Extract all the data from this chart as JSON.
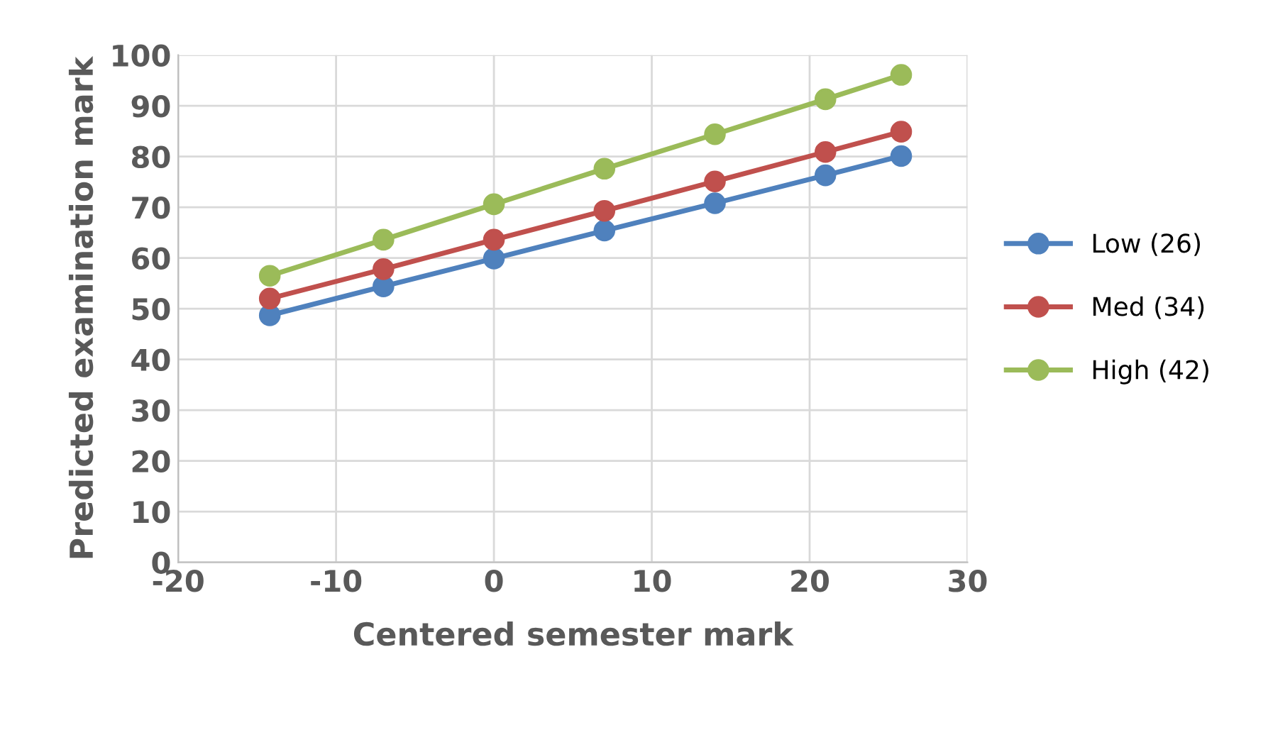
{
  "chart_data": {
    "type": "line",
    "xlabel": "Centered semester mark",
    "ylabel": "Predicted examination mark",
    "x": [
      -14.2,
      -7,
      0,
      7,
      14,
      21,
      25.8
    ],
    "series": [
      {
        "name": "Low (26)",
        "color": "#4f81bd",
        "values": [
          48.7,
          54.4,
          59.9,
          65.4,
          70.8,
          76.3,
          80.1
        ]
      },
      {
        "name": "Med (34)",
        "color": "#c0504d",
        "values": [
          52.0,
          57.8,
          63.6,
          69.3,
          75.1,
          80.9,
          84.9
        ]
      },
      {
        "name": "High (42)",
        "color": "#9bbb59",
        "values": [
          56.5,
          63.6,
          70.6,
          77.6,
          84.4,
          91.3,
          96.1
        ]
      }
    ],
    "xlim": [
      -20,
      30
    ],
    "xticks": [
      -20,
      -10,
      0,
      10,
      20,
      30
    ],
    "ylim": [
      0,
      100
    ],
    "yticks": [
      0,
      10,
      20,
      30,
      40,
      50,
      60,
      70,
      80,
      90,
      100
    ],
    "grid": true,
    "legend": "right",
    "marker": "circle",
    "line_style": "solid"
  }
}
